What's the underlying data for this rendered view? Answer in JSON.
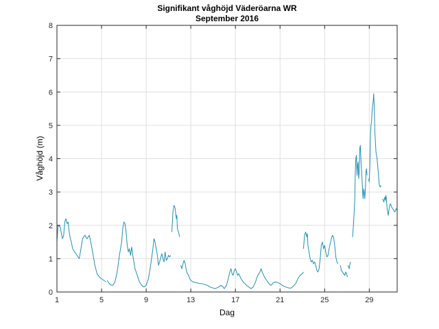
{
  "chart_data": {
    "type": "line",
    "title": "Signifikant våghöjd Väderöarna WR",
    "subtitle": "September 2016",
    "xlabel": "Dag",
    "ylabel": "Våghöjd (m)",
    "xlim": [
      1,
      31.5
    ],
    "ylim": [
      0,
      8
    ],
    "xticks": [
      1,
      5,
      9,
      13,
      17,
      21,
      25,
      29
    ],
    "yticks": [
      0,
      1,
      2,
      3,
      4,
      5,
      6,
      7,
      8
    ],
    "grid": true,
    "line_color": "#1f8fb4",
    "series": [
      {
        "segments": [
          [
            [
              1.0,
              1.5
            ],
            [
              1.1,
              2.0
            ],
            [
              1.3,
              1.95
            ],
            [
              1.4,
              1.75
            ],
            [
              1.5,
              1.6
            ],
            [
              1.6,
              1.7
            ],
            [
              1.7,
              2.1
            ],
            [
              1.8,
              2.2
            ],
            [
              1.9,
              2.05
            ],
            [
              2.0,
              2.1
            ],
            [
              2.1,
              1.8
            ],
            [
              2.2,
              1.6
            ],
            [
              2.3,
              1.5
            ],
            [
              2.4,
              1.3
            ],
            [
              2.6,
              1.2
            ],
            [
              2.8,
              1.1
            ],
            [
              3.0,
              1.0
            ],
            [
              3.1,
              1.2
            ],
            [
              3.3,
              1.6
            ],
            [
              3.5,
              1.7
            ],
            [
              3.7,
              1.6
            ],
            [
              3.8,
              1.65
            ],
            [
              3.9,
              1.7
            ],
            [
              4.0,
              1.55
            ],
            [
              4.2,
              1.2
            ],
            [
              4.4,
              0.8
            ],
            [
              4.6,
              0.55
            ],
            [
              4.8,
              0.45
            ],
            [
              5.0,
              0.4
            ],
            [
              5.2,
              0.35
            ],
            [
              5.4,
              0.3
            ]
          ],
          [
            [
              5.5,
              0.35
            ],
            [
              5.7,
              0.25
            ],
            [
              5.9,
              0.2
            ],
            [
              6.0,
              0.2
            ],
            [
              6.2,
              0.3
            ],
            [
              6.4,
              0.6
            ],
            [
              6.6,
              1.1
            ],
            [
              6.8,
              1.5
            ],
            [
              6.9,
              1.9
            ],
            [
              7.0,
              2.1
            ],
            [
              7.1,
              2.05
            ],
            [
              7.2,
              1.8
            ],
            [
              7.3,
              1.4
            ],
            [
              7.4,
              1.2
            ],
            [
              7.5,
              1.3
            ],
            [
              7.6,
              1.1
            ],
            [
              7.7,
              1.35
            ],
            [
              7.8,
              1.1
            ],
            [
              8.0,
              0.7
            ],
            [
              8.2,
              0.5
            ],
            [
              8.4,
              0.3
            ],
            [
              8.6,
              0.2
            ],
            [
              8.8,
              0.15
            ],
            [
              9.0,
              0.2
            ],
            [
              9.2,
              0.4
            ],
            [
              9.4,
              0.8
            ],
            [
              9.6,
              1.3
            ],
            [
              9.7,
              1.6
            ],
            [
              9.8,
              1.5
            ],
            [
              10.0,
              1.1
            ],
            [
              10.1,
              0.8
            ],
            [
              10.2,
              0.9
            ],
            [
              10.4,
              1.15
            ],
            [
              10.5,
              1.0
            ],
            [
              10.6,
              0.9
            ],
            [
              10.7,
              1.2
            ],
            [
              10.8,
              0.95
            ],
            [
              10.9,
              1.0
            ],
            [
              11.0,
              1.1
            ],
            [
              11.1,
              1.05
            ],
            [
              11.2,
              1.1
            ]
          ],
          [
            [
              11.3,
              1.8
            ],
            [
              11.4,
              2.4
            ],
            [
              11.5,
              2.6
            ],
            [
              11.6,
              2.5
            ],
            [
              11.7,
              2.2
            ],
            [
              11.75,
              2.3
            ],
            [
              11.8,
              1.9
            ],
            [
              11.9,
              1.8
            ],
            [
              12.0,
              1.65
            ]
          ],
          [
            [
              12.1,
              0.8
            ],
            [
              12.2,
              0.7
            ],
            [
              12.3,
              0.85
            ],
            [
              12.4,
              0.95
            ],
            [
              12.5,
              0.85
            ],
            [
              12.6,
              0.65
            ],
            [
              12.7,
              0.55
            ],
            [
              12.8,
              0.5
            ],
            [
              12.9,
              0.4
            ],
            [
              13.0,
              0.35
            ]
          ],
          [
            [
              13.0,
              0.35
            ],
            [
              13.2,
              0.3
            ],
            [
              13.5,
              0.28
            ],
            [
              13.8,
              0.25
            ],
            [
              14.0,
              0.25
            ],
            [
              14.3,
              0.22
            ],
            [
              14.5,
              0.2
            ],
            [
              14.7,
              0.15
            ],
            [
              15.0,
              0.12
            ],
            [
              15.2,
              0.1
            ],
            [
              15.5,
              0.15
            ],
            [
              15.7,
              0.2
            ],
            [
              15.9,
              0.15
            ],
            [
              16.0,
              0.1
            ],
            [
              16.2,
              0.2
            ],
            [
              16.4,
              0.45
            ],
            [
              16.5,
              0.6
            ],
            [
              16.6,
              0.7
            ],
            [
              16.7,
              0.55
            ],
            [
              16.8,
              0.5
            ],
            [
              16.9,
              0.65
            ],
            [
              17.0,
              0.7
            ],
            [
              17.1,
              0.6
            ],
            [
              17.2,
              0.5
            ],
            [
              17.3,
              0.55
            ],
            [
              17.5,
              0.4
            ],
            [
              17.7,
              0.3
            ],
            [
              18.0,
              0.2
            ],
            [
              18.2,
              0.15
            ],
            [
              18.4,
              0.1
            ],
            [
              18.6,
              0.15
            ],
            [
              18.8,
              0.3
            ],
            [
              19.0,
              0.5
            ],
            [
              19.2,
              0.6
            ],
            [
              19.3,
              0.7
            ],
            [
              19.4,
              0.6
            ],
            [
              19.6,
              0.45
            ],
            [
              19.8,
              0.35
            ],
            [
              20.0,
              0.25
            ],
            [
              20.2,
              0.2
            ],
            [
              20.4,
              0.28
            ],
            [
              20.6,
              0.3
            ],
            [
              20.8,
              0.28
            ],
            [
              21.0,
              0.25
            ],
            [
              21.2,
              0.2
            ],
            [
              21.5,
              0.15
            ],
            [
              21.8,
              0.12
            ],
            [
              22.0,
              0.12
            ],
            [
              22.2,
              0.18
            ],
            [
              22.4,
              0.25
            ],
            [
              22.6,
              0.4
            ],
            [
              22.8,
              0.5
            ],
            [
              23.0,
              0.55
            ],
            [
              23.1,
              0.6
            ]
          ],
          [
            [
              23.1,
              1.3
            ],
            [
              23.2,
              1.7
            ],
            [
              23.3,
              1.8
            ],
            [
              23.4,
              1.65
            ],
            [
              23.45,
              1.75
            ],
            [
              23.5,
              1.4
            ],
            [
              23.6,
              1.2
            ],
            [
              23.7,
              1.0
            ],
            [
              23.8,
              0.9
            ],
            [
              23.9,
              0.95
            ],
            [
              24.0,
              0.85
            ],
            [
              24.1,
              0.9
            ],
            [
              24.2,
              0.8
            ],
            [
              24.3,
              0.65
            ],
            [
              24.4,
              0.6
            ],
            [
              24.5,
              0.7
            ],
            [
              24.6,
              1.0
            ],
            [
              24.7,
              1.4
            ],
            [
              24.8,
              1.5
            ],
            [
              24.9,
              1.3
            ],
            [
              25.0,
              1.4
            ],
            [
              25.1,
              1.2
            ],
            [
              25.2,
              1.05
            ],
            [
              25.3,
              1.1
            ],
            [
              25.4,
              1.3
            ],
            [
              25.5,
              1.45
            ],
            [
              25.6,
              1.6
            ],
            [
              25.7,
              1.7
            ],
            [
              25.8,
              1.65
            ],
            [
              25.9,
              1.4
            ],
            [
              26.0,
              1.05
            ],
            [
              26.1,
              0.9
            ],
            [
              26.2,
              0.85
            ]
          ],
          [
            [
              26.4,
              0.8
            ],
            [
              26.5,
              0.65
            ],
            [
              26.6,
              0.6
            ],
            [
              26.7,
              0.55
            ],
            [
              26.8,
              0.5
            ],
            [
              26.9,
              0.6
            ],
            [
              27.0,
              0.5
            ],
            [
              27.05,
              0.45
            ]
          ],
          [
            [
              27.1,
              0.8
            ],
            [
              27.2,
              0.7
            ],
            [
              27.3,
              0.9
            ]
          ],
          [
            [
              27.5,
              1.65
            ],
            [
              27.6,
              2.1
            ],
            [
              27.7,
              2.8
            ],
            [
              27.75,
              3.6
            ],
            [
              27.8,
              4.0
            ],
            [
              27.85,
              4.1
            ],
            [
              27.9,
              3.5
            ],
            [
              27.95,
              3.8
            ],
            [
              28.0,
              3.9
            ],
            [
              28.05,
              3.4
            ],
            [
              28.1,
              3.6
            ],
            [
              28.15,
              4.3
            ],
            [
              28.2,
              4.4
            ],
            [
              28.25,
              4.0
            ],
            [
              28.3,
              3.7
            ],
            [
              28.35,
              3.4
            ],
            [
              28.4,
              3.0
            ],
            [
              28.45,
              2.8
            ],
            [
              28.5,
              3.1
            ],
            [
              28.55,
              3.0
            ],
            [
              28.6,
              2.8
            ],
            [
              28.65,
              3.1
            ],
            [
              28.7,
              3.6
            ],
            [
              28.75,
              3.7
            ],
            [
              28.8,
              3.5
            ]
          ],
          [
            [
              28.95,
              3.4
            ],
            [
              29.0,
              3.3
            ],
            [
              29.05,
              3.8
            ],
            [
              29.1,
              4.6
            ],
            [
              29.15,
              5.0
            ],
            [
              29.2,
              5.1
            ],
            [
              29.25,
              5.4
            ],
            [
              29.3,
              5.6
            ],
            [
              29.35,
              5.7
            ],
            [
              29.4,
              5.95
            ],
            [
              29.45,
              5.5
            ],
            [
              29.5,
              4.8
            ],
            [
              29.55,
              4.5
            ],
            [
              29.6,
              4.2
            ],
            [
              29.7,
              4.0
            ],
            [
              29.8,
              3.6
            ],
            [
              29.9,
              3.2
            ],
            [
              30.0,
              3.15
            ],
            [
              30.05,
              3.2
            ]
          ],
          [
            [
              30.2,
              2.8
            ],
            [
              30.3,
              2.7
            ],
            [
              30.4,
              2.85
            ],
            [
              30.45,
              2.75
            ],
            [
              30.5,
              2.9
            ],
            [
              30.55,
              2.7
            ],
            [
              30.6,
              2.5
            ],
            [
              30.65,
              2.4
            ],
            [
              30.7,
              2.3
            ],
            [
              30.8,
              2.55
            ],
            [
              30.9,
              2.65
            ],
            [
              31.0,
              2.55
            ],
            [
              31.1,
              2.5
            ],
            [
              31.2,
              2.45
            ],
            [
              31.3,
              2.4
            ],
            [
              31.4,
              2.5
            ],
            [
              31.5,
              2.45
            ]
          ]
        ]
      }
    ]
  }
}
